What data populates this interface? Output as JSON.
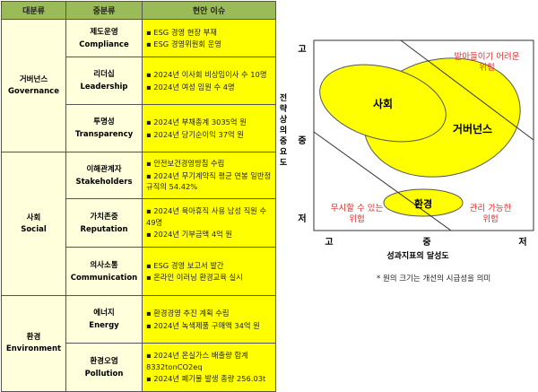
{
  "table": {
    "headers": [
      "대분류",
      "중분류",
      "현안 이슈"
    ],
    "groups": [
      {
        "ko": "거버넌스",
        "en": "Governance",
        "rows": [
          {
            "ko": "제도운영",
            "en": "Compliance",
            "issues": [
              "ESG 경영 현장 부재",
              "ESG 경영위원회 운영"
            ]
          },
          {
            "ko": "리더십",
            "en": "Leadership",
            "issues": [
              "2024년 이사회 비상임이사 수 10명",
              "2024년 여성 임원 수 4명"
            ]
          },
          {
            "ko": "투명성",
            "en": "Transparency",
            "issues": [
              "2024년 부채총계 3035억 원",
              "2024년 당기순이익 37억 원"
            ]
          }
        ]
      },
      {
        "ko": "사회",
        "en": "Social",
        "rows": [
          {
            "ko": "이해관계자",
            "en": "Stakeholders",
            "issues": [
              "안전보건경영방침 수립",
              "2024년 무기계약직 평균 연봉 일반정규직의 54.42%"
            ]
          },
          {
            "ko": "가치존중",
            "en": "Reputation",
            "issues": [
              "2024년 육아휴직 사용 남성 직원 수 49명",
              "2024년 기부금액 4억 원"
            ]
          },
          {
            "ko": "의사소통",
            "en": "Communication",
            "issues": [
              "ESG 경영 보고서 발간",
              "온라인 이러닝 환경교육 실시"
            ]
          }
        ]
      },
      {
        "ko": "환경",
        "en": "Environment",
        "rows": [
          {
            "ko": "에너지",
            "en": "Energy",
            "issues": [
              "환경경영 추진 계획 수립",
              "2024년 녹색제품 구매액 34억 원"
            ]
          },
          {
            "ko": "환경오염",
            "en": "Pollution",
            "issues": [
              "2024년 온실가스 배출량 합계 8332tonCO2eq",
              "2024년 폐기물 발생 총량 256.03t"
            ]
          }
        ]
      }
    ]
  },
  "matrix": {
    "y_title": "전략상의중요도",
    "y_ticks": [
      "고",
      "중",
      "저"
    ],
    "x_ticks": [
      "고",
      "중",
      "저"
    ],
    "x_title": "성과지표의 달성도",
    "bubbles": [
      "사회",
      "거버넌스",
      "환경"
    ],
    "zones": [
      [
        "받아들이기 어려운",
        "위험"
      ],
      [
        "무시할 수 있는",
        "위험"
      ],
      [
        "관리 가능한",
        "위험"
      ]
    ],
    "note": "* 원의 크기는  개선의 시급성을 의미",
    "bubble_color": "#ffff00",
    "zone_text_color": "#e03030"
  }
}
